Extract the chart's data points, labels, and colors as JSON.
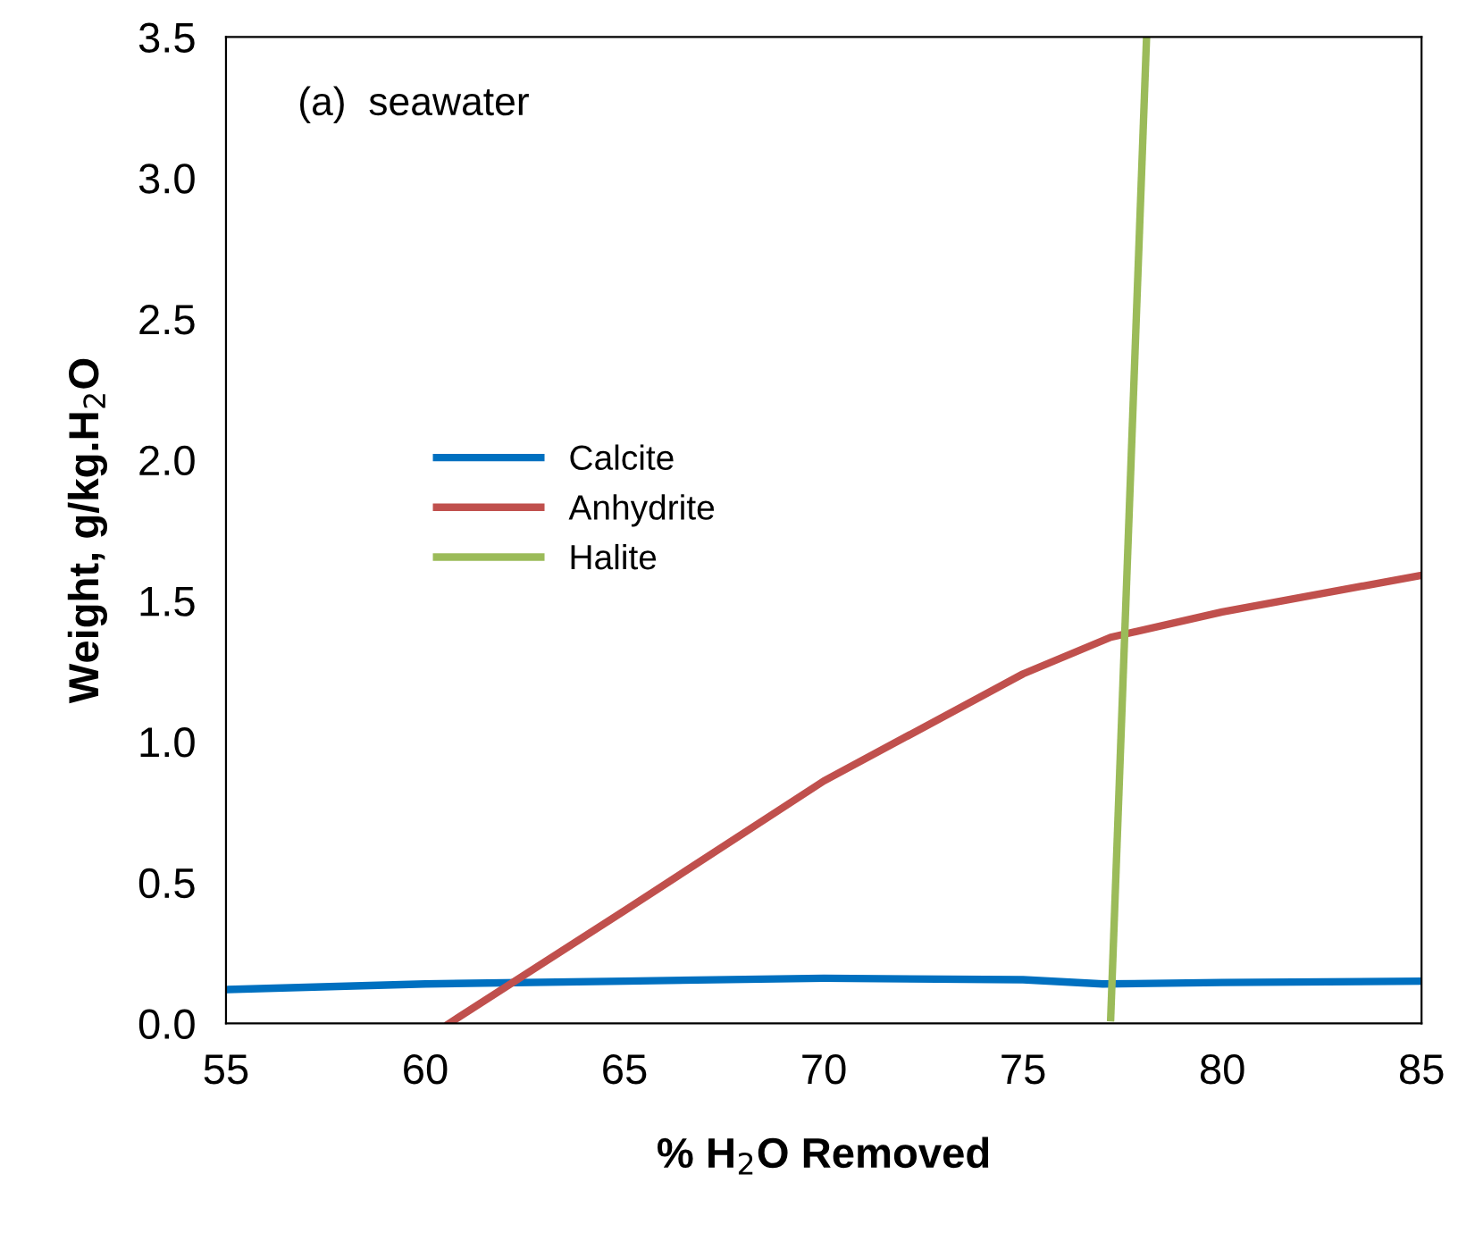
{
  "chart_data": {
    "type": "line",
    "xlabel": "% H$_{2}$O Removed",
    "ylabel": "Weight, g/kg.H$_{2}$O",
    "annotations": [
      "(a)  seawater"
    ],
    "xlim": [
      55,
      85
    ],
    "ylim": [
      0,
      3.5
    ],
    "xticks": [
      55,
      60,
      65,
      70,
      75,
      80,
      85
    ],
    "yticks": [
      {
        "value": 0,
        "label": "0.0"
      },
      {
        "value": 0.5,
        "label": "0.5"
      },
      {
        "value": 1,
        "label": "1.0"
      },
      {
        "value": 1.5,
        "label": "1.5"
      },
      {
        "value": 2,
        "label": "2.0"
      },
      {
        "value": 2.5,
        "label": "2.5"
      },
      {
        "value": 3,
        "label": "3.0"
      },
      {
        "value": 3.5,
        "label": "3.5"
      }
    ],
    "grid": false,
    "legend": "left",
    "marker": "none",
    "line_style": "solid",
    "series": [
      {
        "name": "Calcite",
        "color": "#0070c0",
        "x": [
          55,
          60,
          65,
          70,
          75,
          77,
          80,
          85
        ],
        "values": [
          0.12,
          0.14,
          0.15,
          0.16,
          0.155,
          0.14,
          0.145,
          0.15
        ]
      },
      {
        "name": "Anhydrite",
        "color": "#c0504d",
        "x": [
          60.6,
          65,
          70,
          75,
          77.2,
          80,
          85
        ],
        "values": [
          0,
          0.4,
          0.86,
          1.24,
          1.37,
          1.46,
          1.59
        ]
      },
      {
        "name": "Halite",
        "color": "#9bbb59",
        "x": [
          77.2,
          78.1
        ],
        "values": [
          0.02,
          3.5
        ]
      }
    ]
  }
}
